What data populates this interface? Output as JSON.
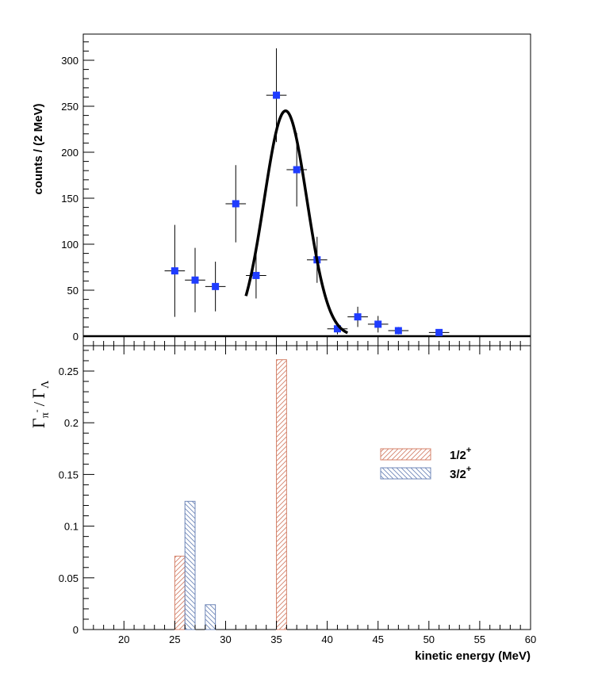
{
  "chart_data": [
    {
      "type": "scatter",
      "ylabel": "counts / (2 MeV)",
      "xlim": [
        16,
        60
      ],
      "ylim": [
        0,
        330
      ],
      "yticks": [
        0,
        50,
        100,
        150,
        200,
        250,
        300
      ],
      "series": [
        {
          "points": [
            {
              "x": 25,
              "y": 71,
              "yerr": 50,
              "xerr": 1
            },
            {
              "x": 27,
              "y": 61,
              "yerr": 35,
              "xerr": 1
            },
            {
              "x": 29,
              "y": 54,
              "yerr": 27,
              "xerr": 1
            },
            {
              "x": 31,
              "y": 144,
              "yerr": 42,
              "xerr": 1
            },
            {
              "x": 33,
              "y": 66,
              "yerr": 25,
              "xerr": 1
            },
            {
              "x": 35,
              "y": 262,
              "yerr": 51,
              "xerr": 1
            },
            {
              "x": 37,
              "y": 181,
              "yerr": 40,
              "xerr": 1
            },
            {
              "x": 39,
              "y": 83,
              "yerr": 25,
              "xerr": 1
            },
            {
              "x": 41,
              "y": 8,
              "yerr": 6,
              "xerr": 1
            },
            {
              "x": 43,
              "y": 21,
              "yerr": 11,
              "xerr": 1
            },
            {
              "x": 45,
              "y": 13,
              "yerr": 9,
              "xerr": 1
            },
            {
              "x": 47,
              "y": 6,
              "yerr": 4,
              "xerr": 1
            },
            {
              "x": 51,
              "y": 4,
              "yerr": 2,
              "xerr": 1
            }
          ],
          "color": "#1f3cff"
        },
        {
          "type": "line",
          "fit": {
            "amplitude": 245,
            "mean": 35.9,
            "sigma": 2.1,
            "xrange": [
              32,
              42
            ]
          },
          "color": "#000000"
        }
      ]
    },
    {
      "type": "bar",
      "ylabel_main": "Γ",
      "ylabel_sub1": "π",
      "ylabel_sup1": "-",
      "ylabel_sep": "/",
      "ylabel_main2": "Γ",
      "ylabel_sub2": "Λ",
      "xlabel": "kinetic energy (MeV)",
      "xlim": [
        16,
        60
      ],
      "ylim": [
        0,
        0.28
      ],
      "xticks": [
        20,
        25,
        30,
        35,
        40,
        45,
        50,
        55,
        60
      ],
      "yticks": [
        0,
        0.05,
        0.1,
        0.15,
        0.2,
        0.25
      ],
      "ytick_labels": [
        "0",
        "0.05",
        "0.1",
        "0.15",
        "0.2",
        "0.25"
      ],
      "series": [
        {
          "name": "1/2",
          "name_sup": "+",
          "color": "#d4826a",
          "bars": [
            {
              "x0": 25,
              "x1": 26,
              "value": 0.071
            },
            {
              "x0": 35,
              "x1": 36,
              "value": 0.261
            }
          ]
        },
        {
          "name": "3/2",
          "name_sup": "+",
          "color": "#6f87b8",
          "bars": [
            {
              "x0": 26,
              "x1": 27,
              "value": 0.124
            },
            {
              "x0": 28,
              "x1": 29,
              "value": 0.024
            }
          ]
        }
      ],
      "legend": "right"
    }
  ]
}
